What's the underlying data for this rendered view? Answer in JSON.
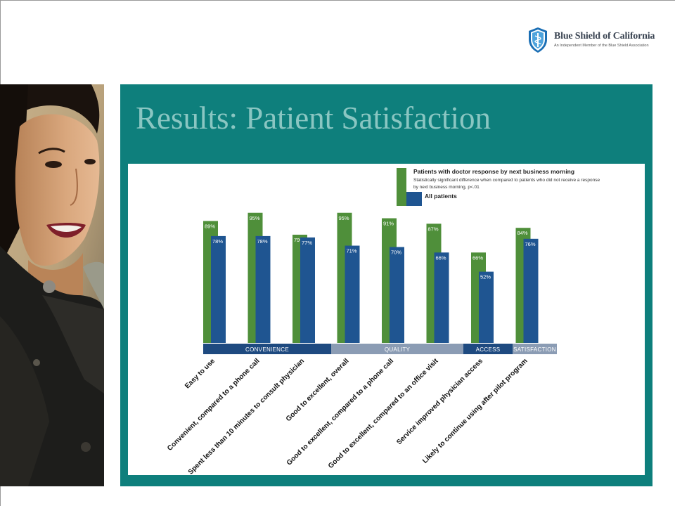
{
  "slide": {
    "title": "Results: Patient Satisfaction"
  },
  "logo": {
    "name": "Blue Shield of California",
    "tagline": "An Independent Member of the Blue Shield Association"
  },
  "colors": {
    "teal_panel": "#0e7f7c",
    "title": "#8ac6c2",
    "green_series": "#4f8f3a",
    "blue_series": "#1f5591",
    "convenience_band": "#1e4a80",
    "quality_band": "#8b9cb4",
    "access_band": "#1e4a80",
    "satisfaction_band": "#8b9cb4"
  },
  "chart_data": {
    "type": "bar",
    "categories": [
      "Easy to use",
      "Convenient, compared to a phone call",
      "Spent less than 10 minutes to consult physician",
      "Good to excellent, overall",
      "Good to excellent, compared to a phone call",
      "Good to excellent, compared to an office visit",
      "Service improved physician access",
      "Likely to continue using after pilot program"
    ],
    "series": [
      {
        "name": "Patients with doctor response by next business morning",
        "values": [
          89,
          95,
          79,
          95,
          91,
          87,
          66,
          84
        ],
        "labels": [
          "89%",
          "95%",
          "79%",
          "95%",
          "91%",
          "87%",
          "66%",
          "84%"
        ],
        "color": "#4f8f3a"
      },
      {
        "name": "All patients",
        "values": [
          78,
          78,
          77,
          71,
          70,
          66,
          52,
          76
        ],
        "labels": [
          "78%",
          "78%",
          "77%",
          "71%",
          "70%",
          "66%",
          "52%",
          "76%"
        ],
        "color": "#1f5591"
      }
    ],
    "legend_note": "Statistically significant difference when compared to patients who did not receive a response by next business morning, p<.01",
    "groups": [
      {
        "label": "CONVENIENCE",
        "from": 0,
        "to": 2
      },
      {
        "label": "QUALITY",
        "from": 3,
        "to": 5
      },
      {
        "label": "ACCESS",
        "from": 6,
        "to": 6
      },
      {
        "label": "SATISFACTION",
        "from": 7,
        "to": 7
      }
    ],
    "ylim": [
      0,
      100
    ],
    "grid": false,
    "legend_position": "top-right"
  }
}
